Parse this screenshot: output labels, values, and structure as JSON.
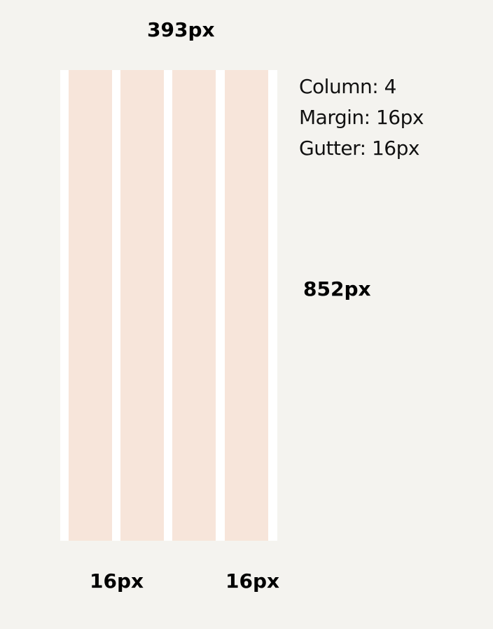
{
  "width_label": "393px",
  "height_label": "852px",
  "specs": [
    "Column: 4",
    "Margin: 16px",
    "Gutter: 16px"
  ],
  "bottom_labels": [
    "16px",
    "16px"
  ]
}
